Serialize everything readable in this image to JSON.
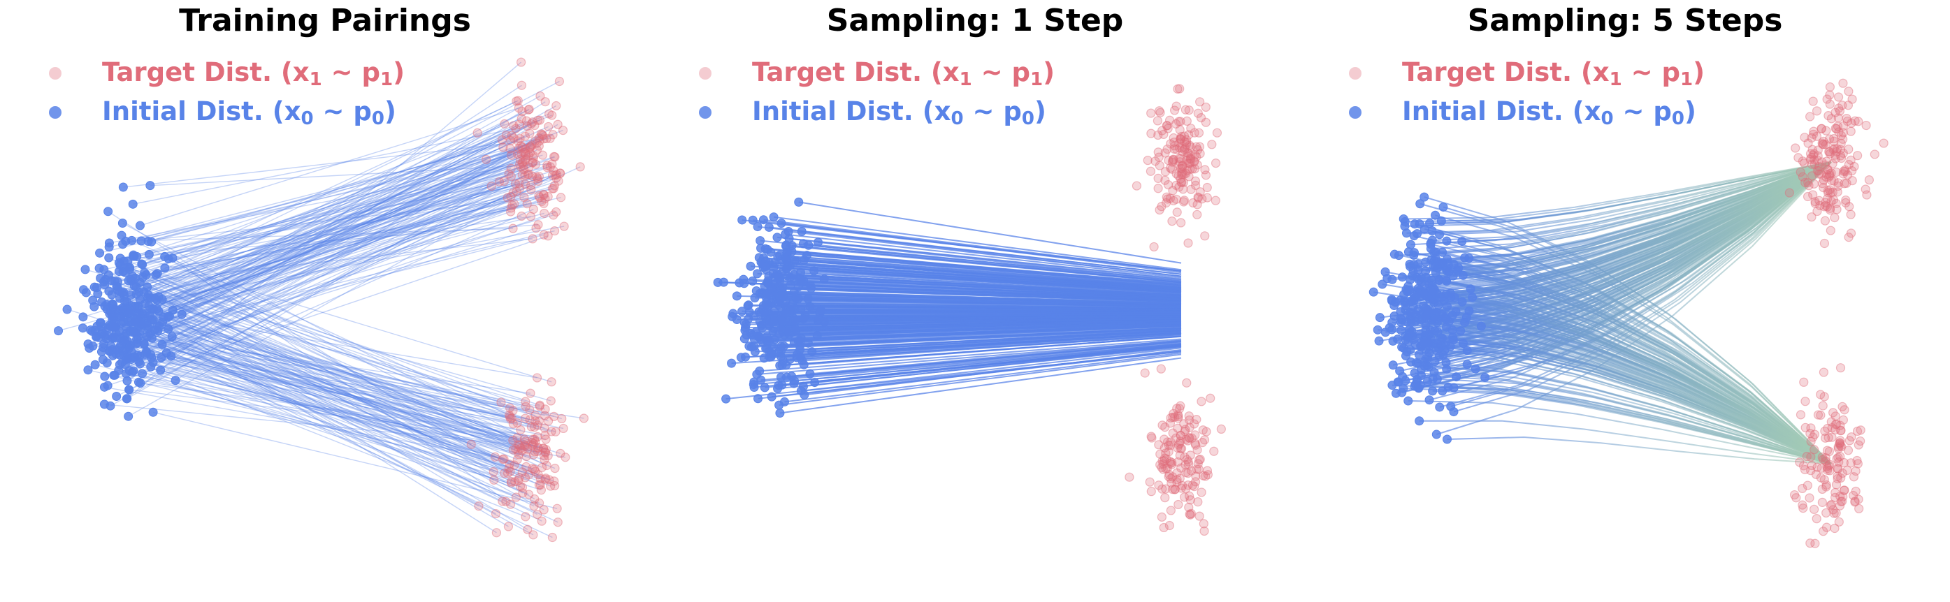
{
  "colors": {
    "target": "#e06c7a",
    "initial": "#5883e8",
    "transit": "#a8cfb3"
  },
  "legend": {
    "target": {
      "text": "Target Dist. (x",
      "sub1": "1",
      "mid": " ~ p",
      "sub2": "1",
      "end": ")"
    },
    "initial": {
      "text": "Initial Dist. (x",
      "sub1": "0",
      "mid": " ~ p",
      "sub2": "0",
      "end": ")"
    }
  },
  "chart_data": [
    {
      "type": "scatter",
      "title": "Training Pairings",
      "description": "Initial points (cluster at x=0) connected by straight lines to randomly paired target points (two clusters at x=1)",
      "series": [
        {
          "name": "Target Dist. (x1 ~ p1)",
          "clusters": [
            {
              "x": 1.0,
              "y": 0.72
            },
            {
              "x": 1.0,
              "y": -0.72
            }
          ]
        },
        {
          "name": "Initial Dist. (x0 ~ p0)",
          "clusters": [
            {
              "x": 0.0,
              "y": 0.0
            }
          ]
        }
      ],
      "n_points": 300
    },
    {
      "type": "scatter",
      "title": "Sampling: 1 Step",
      "description": "Single Euler step from initial points; all trajectories collapse toward the mean y=0 at x=1",
      "series": [
        {
          "name": "Target Dist. (x1 ~ p1)",
          "clusters": [
            {
              "x": 1.0,
              "y": 0.72
            },
            {
              "x": 1.0,
              "y": -0.72
            }
          ]
        },
        {
          "name": "Initial Dist. (x0 ~ p0)",
          "clusters": [
            {
              "x": 0.0,
              "y": 0.0
            }
          ]
        }
      ],
      "steps": 1,
      "n_points": 300
    },
    {
      "type": "scatter",
      "title": "Sampling: 5 Steps",
      "description": "Five-step trajectories bending from initial cluster toward both target clusters",
      "series": [
        {
          "name": "Target Dist. (x1 ~ p1)",
          "clusters": [
            {
              "x": 1.0,
              "y": 0.72
            },
            {
              "x": 1.0,
              "y": -0.72
            }
          ]
        },
        {
          "name": "Initial Dist. (x0 ~ p0)",
          "clusters": [
            {
              "x": 0.0,
              "y": 0.0
            }
          ]
        }
      ],
      "steps": 5,
      "n_points": 300
    }
  ]
}
